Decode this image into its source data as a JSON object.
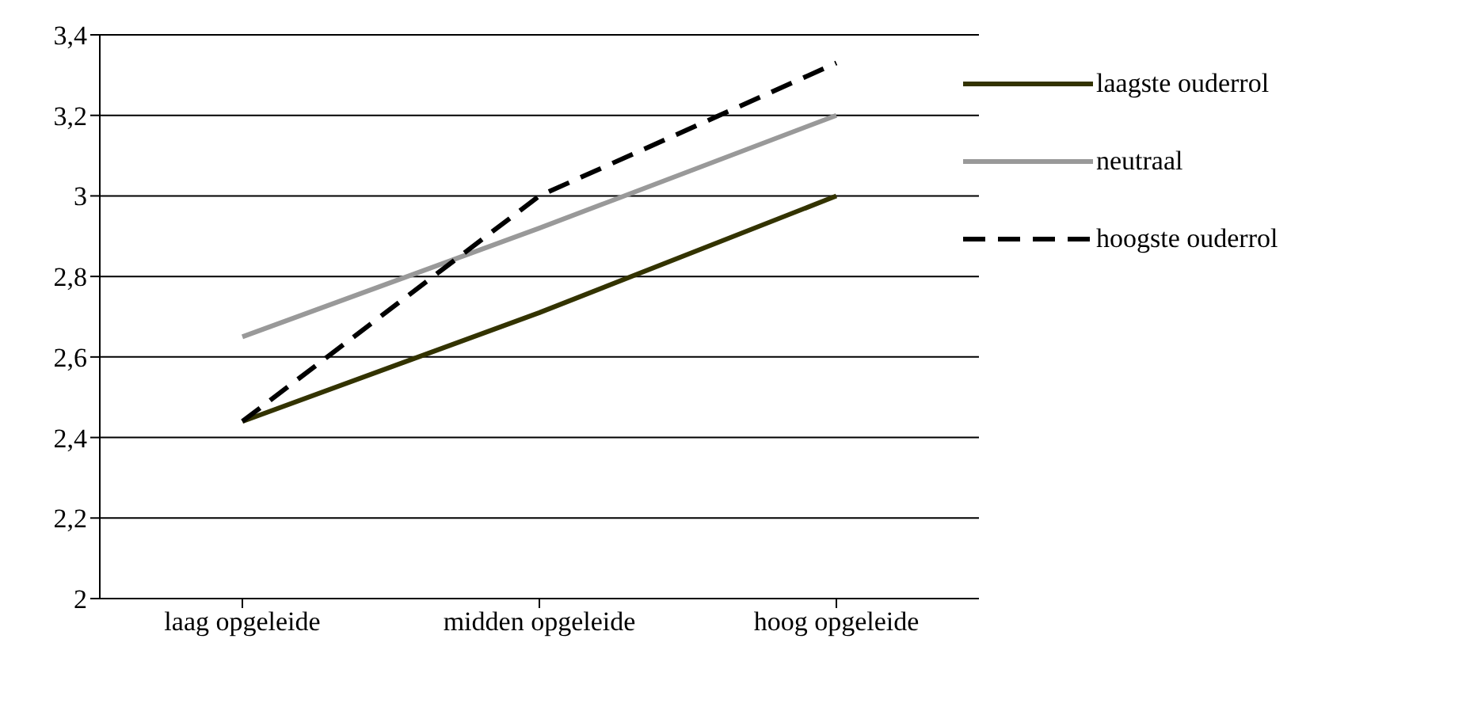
{
  "chart_data": {
    "type": "line",
    "categories": [
      "laag opgeleide",
      "midden opgeleide",
      "hoog opgeleide"
    ],
    "series": [
      {
        "name": "laagste ouderrol",
        "color": "#333300",
        "values": [
          2.44,
          2.71,
          3.0
        ],
        "line_style": "solid"
      },
      {
        "name": "neutraal",
        "color": "#999999",
        "values": [
          2.65,
          2.92,
          3.2
        ],
        "line_style": "solid"
      },
      {
        "name": "hoogste ouderrol",
        "color": "#000000",
        "values": [
          2.44,
          3.0,
          3.33
        ],
        "line_style": "dashed"
      }
    ],
    "ylim": [
      2,
      3.4
    ],
    "yticks": [
      2,
      {
        "value": 2.2,
        "label": "2,2"
      },
      {
        "value": 2.4,
        "label": "2,4"
      },
      {
        "value": 2.6,
        "label": "2,6"
      },
      {
        "value": 2.8,
        "label": "2,8"
      },
      3,
      {
        "value": 3.2,
        "label": "3,2"
      },
      {
        "value": 3.4,
        "label": "3,4"
      }
    ],
    "grid": "y",
    "legend": "right",
    "marker": "none"
  }
}
